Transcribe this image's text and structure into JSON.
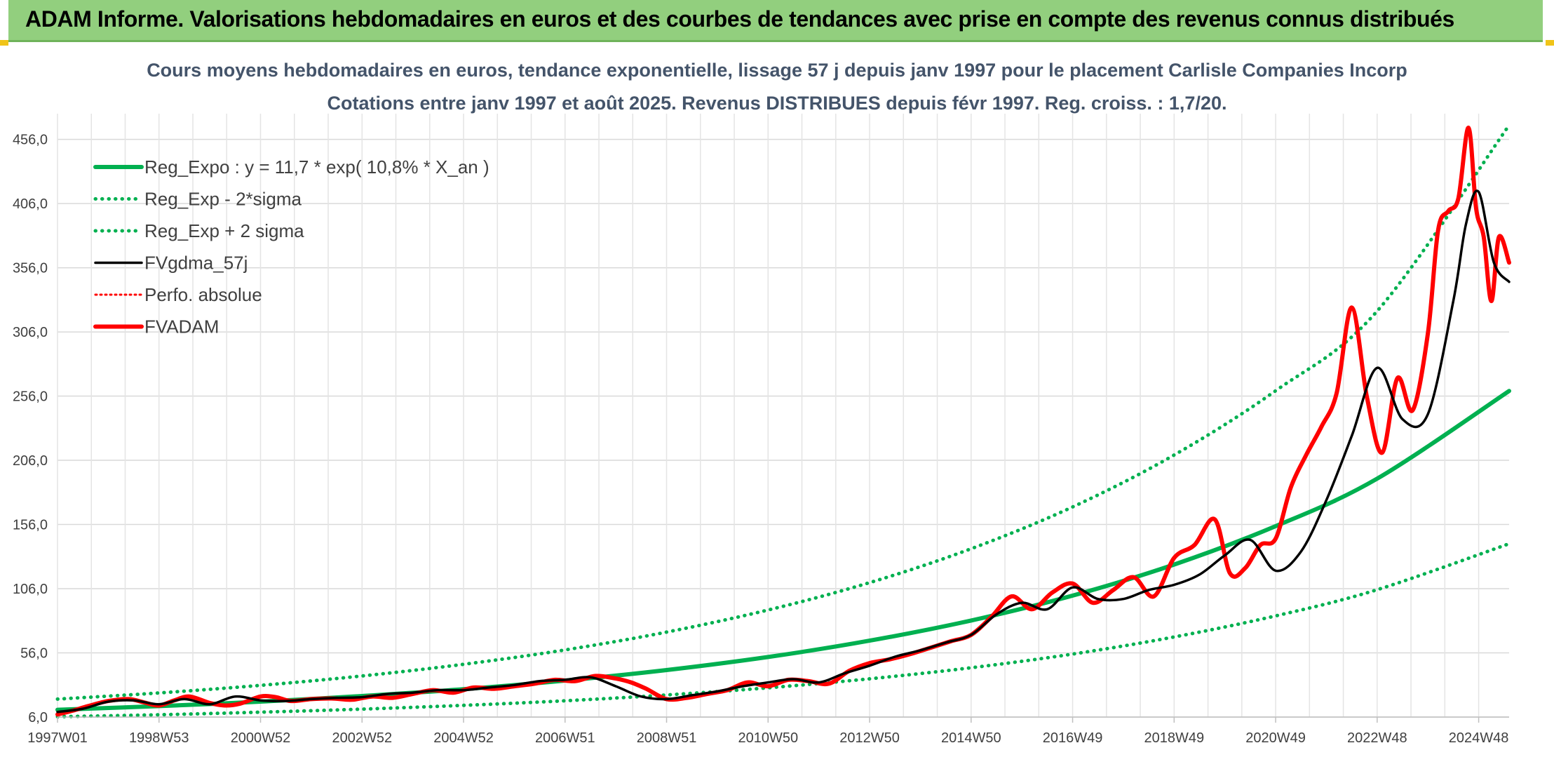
{
  "header": {
    "title": "ADAM Informe. Valorisations hebdomadaires en euros et des courbes de tendances avec prise en compte des revenus connus distribués"
  },
  "chart_data": {
    "type": "line",
    "title": "Cours moyens hebdomadaires en euros, tendance exponentielle, lissage 57 j depuis janv 1997 pour le placement Carlisle Companies Incorp",
    "subtitle": "Cotations entre janv 1997 et août 2025. Revenus DISTRIBUES depuis févr 1997. Reg. croiss. : 1,7/20.",
    "xlabel": "",
    "ylabel": "",
    "x_range": [
      1997.0,
      2025.6
    ],
    "ylim": [
      6.0,
      476.0
    ],
    "x_tick_labels": [
      "1997W01",
      "1998W53",
      "2000W52",
      "2002W52",
      "2004W52",
      "2006W51",
      "2008W51",
      "2010W50",
      "2012W50",
      "2014W50",
      "2016W49",
      "2018W49",
      "2020W49",
      "2022W48",
      "2024W48"
    ],
    "x_tick_years": [
      1997.0,
      1999.0,
      2001.0,
      2003.0,
      2005.0,
      2007.0,
      2009.0,
      2011.0,
      2013.0,
      2015.0,
      2017.0,
      2019.0,
      2021.0,
      2023.0,
      2025.0
    ],
    "y_ticks": [
      6.0,
      56.0,
      106.0,
      156.0,
      206.0,
      256.0,
      306.0,
      356.0,
      406.0,
      456.0
    ],
    "y_tick_labels": [
      "6,0",
      "56,0",
      "106,0",
      "156,0",
      "206,0",
      "256,0",
      "306,0",
      "356,0",
      "406,0",
      "456,0"
    ],
    "grid": true,
    "legend_position": "top-left",
    "series": [
      {
        "name": "Reg_Expo : y = 11,7 * exp( 10,8% *  X_an )",
        "color": "#00b050",
        "style": "solid",
        "width": "thick",
        "x": [
          1997.0,
          1999.0,
          2001.0,
          2003.0,
          2005.0,
          2007.0,
          2009.0,
          2011.0,
          2013.0,
          2015.0,
          2017.0,
          2019.0,
          2021.0,
          2023.0,
          2025.6
        ],
        "y": [
          11.7,
          14.5,
          18.0,
          22.4,
          27.7,
          34.4,
          42.6,
          52.8,
          65.5,
          81.2,
          100.6,
          124.8,
          154.7,
          191.7,
          260.0
        ]
      },
      {
        "name": "Reg_Exp - 2*sigma",
        "color": "#00b050",
        "style": "dotted",
        "width": "medium",
        "x": [
          1997.0,
          1999.0,
          2001.0,
          2003.0,
          2005.0,
          2007.0,
          2009.0,
          2011.0,
          2013.0,
          2015.0,
          2017.0,
          2019.0,
          2021.0,
          2023.0,
          2025.6
        ],
        "y": [
          6.3,
          7.8,
          9.8,
          12.2,
          15.1,
          18.7,
          23.2,
          28.8,
          35.8,
          44.4,
          55.1,
          68.4,
          84.8,
          105.2,
          141.0
        ]
      },
      {
        "name": "Reg_Exp + 2 sigma",
        "color": "#00b050",
        "style": "dotted",
        "width": "medium",
        "x": [
          1997.0,
          1999.0,
          2001.0,
          2003.0,
          2005.0,
          2007.0,
          2009.0,
          2011.0,
          2013.0,
          2015.0,
          2017.0,
          2019.0,
          2021.0,
          2023.0,
          2025.6
        ],
        "y": [
          20.0,
          24.8,
          30.7,
          38.0,
          47.1,
          58.3,
          72.2,
          89.4,
          110.7,
          137.1,
          169.7,
          210.1,
          260.2,
          322.2,
          467.0
        ]
      },
      {
        "name": "FVgdma_57j",
        "color": "#000000",
        "style": "solid",
        "width": "medium",
        "x": [
          1997.0,
          1997.5,
          1998.0,
          1998.5,
          1999.0,
          1999.5,
          2000.0,
          2000.5,
          2001.0,
          2001.5,
          2002.0,
          2002.5,
          2003.0,
          2003.5,
          2004.0,
          2004.5,
          2005.0,
          2005.5,
          2006.0,
          2006.5,
          2007.0,
          2007.5,
          2008.0,
          2008.5,
          2009.0,
          2009.5,
          2010.0,
          2010.5,
          2011.0,
          2011.5,
          2012.0,
          2012.5,
          2013.0,
          2013.5,
          2014.0,
          2014.5,
          2015.0,
          2015.5,
          2016.0,
          2016.5,
          2017.0,
          2017.5,
          2018.0,
          2018.5,
          2019.0,
          2019.5,
          2020.0,
          2020.5,
          2021.0,
          2021.5,
          2022.0,
          2022.5,
          2023.0,
          2023.5,
          2024.0,
          2024.5,
          2024.75,
          2025.0,
          2025.3,
          2025.6
        ],
        "y": [
          10.0,
          12.5,
          18.0,
          19.0,
          16.0,
          20.0,
          16.0,
          22.0,
          19.0,
          18.5,
          20.0,
          21.0,
          21.5,
          24.0,
          25.0,
          27.0,
          27.0,
          29.0,
          31.0,
          34.0,
          35.0,
          37.0,
          30.0,
          22.0,
          20.0,
          23.0,
          26.0,
          30.0,
          33.0,
          35.5,
          33.0,
          40.0,
          46.0,
          53.0,
          58.0,
          64.0,
          70.0,
          86.0,
          95.0,
          90.0,
          107.0,
          98.0,
          98.0,
          105.0,
          109.0,
          117.0,
          132.0,
          144.0,
          120.0,
          135.0,
          175.0,
          225.0,
          278.0,
          238.0,
          242.0,
          330.0,
          390.0,
          415.0,
          360.0,
          345.0
        ]
      },
      {
        "name": "Perfo. absolue",
        "color": "#ff0000",
        "style": "dotted",
        "width": "thin",
        "x": [],
        "y": []
      },
      {
        "name": "FVADAM",
        "color": "#ff0000",
        "style": "solid",
        "width": "thick",
        "x": [
          1997.0,
          1997.3,
          1997.6,
          1998.0,
          1998.4,
          1998.7,
          1999.0,
          1999.3,
          1999.6,
          2000.0,
          2000.3,
          2000.6,
          2001.0,
          2001.3,
          2001.6,
          2002.0,
          2002.4,
          2002.8,
          2003.2,
          2003.6,
          2004.0,
          2004.4,
          2004.8,
          2005.2,
          2005.6,
          2006.0,
          2006.4,
          2006.8,
          2007.2,
          2007.6,
          2008.0,
          2008.3,
          2008.6,
          2009.0,
          2009.4,
          2009.8,
          2010.2,
          2010.6,
          2011.0,
          2011.4,
          2011.8,
          2012.2,
          2012.6,
          2013.0,
          2013.4,
          2013.8,
          2014.2,
          2014.6,
          2015.0,
          2015.4,
          2015.8,
          2016.2,
          2016.6,
          2017.0,
          2017.4,
          2017.8,
          2018.2,
          2018.6,
          2019.0,
          2019.4,
          2019.8,
          2020.1,
          2020.4,
          2020.7,
          2021.0,
          2021.3,
          2021.6,
          2021.9,
          2022.2,
          2022.5,
          2022.8,
          2023.1,
          2023.4,
          2023.7,
          2024.0,
          2024.2,
          2024.4,
          2024.6,
          2024.8,
          2024.95,
          2025.1,
          2025.25,
          2025.4,
          2025.6
        ],
        "y": [
          8.0,
          11.0,
          14.5,
          18.5,
          20.0,
          17.5,
          15.0,
          19.0,
          22.0,
          17.0,
          15.0,
          16.5,
          22.0,
          21.5,
          18.5,
          20.0,
          20.5,
          19.5,
          22.0,
          21.0,
          24.0,
          27.0,
          25.0,
          29.0,
          28.0,
          30.0,
          32.0,
          35.0,
          34.0,
          38.0,
          36.0,
          33.0,
          28.0,
          20.0,
          21.0,
          24.0,
          27.0,
          33.0,
          30.0,
          35.0,
          34.0,
          32.0,
          42.0,
          48.0,
          51.0,
          55.0,
          60.0,
          65.0,
          70.0,
          84.0,
          100.0,
          90.0,
          103.0,
          110.0,
          95.0,
          105.0,
          115.0,
          100.0,
          130.0,
          140.0,
          160.0,
          118.0,
          122.0,
          140.0,
          145.0,
          185.0,
          210.0,
          232.0,
          258.0,
          325.0,
          255.0,
          212.0,
          270.0,
          245.0,
          305.0,
          385.0,
          400.0,
          410.0,
          465.0,
          402.0,
          380.0,
          330.0,
          380.0,
          360.0
        ]
      }
    ]
  }
}
